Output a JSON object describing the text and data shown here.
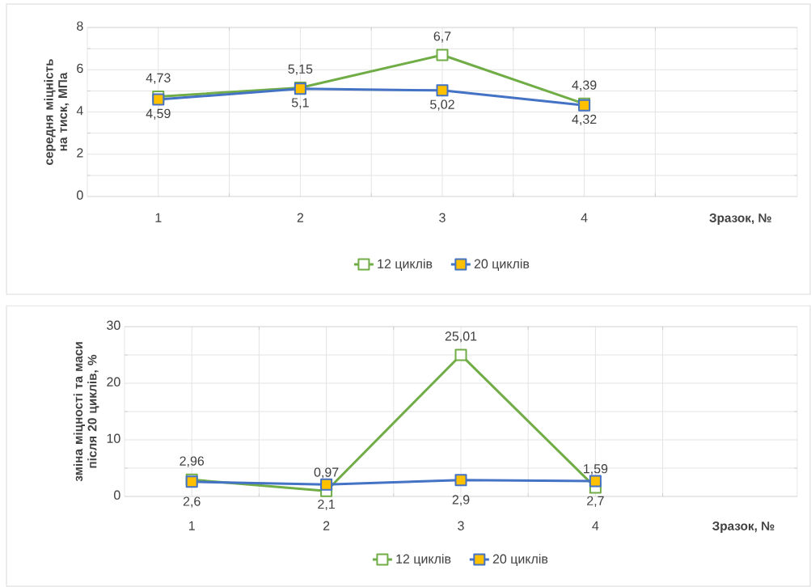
{
  "chart_data": [
    {
      "type": "line",
      "xlabel": "Зразок, №",
      "ylabel": "середня міцність на тиск, МПа",
      "categories": [
        "1",
        "2",
        "3",
        "4"
      ],
      "series": [
        {
          "name": "12 циклів",
          "color": "#70ad47",
          "values": [
            4.73,
            5.15,
            6.7,
            4.39
          ],
          "value_labels": [
            "4,73",
            "5,15",
            "6,7",
            "4,39"
          ]
        },
        {
          "name": "20 циклів",
          "color": "#4472c4",
          "values": [
            4.59,
            5.1,
            5.02,
            4.32
          ],
          "value_labels": [
            "4,59",
            "5,1",
            "5,02",
            "4,32"
          ]
        }
      ],
      "ylim": [
        0,
        8
      ],
      "yticks": [
        0,
        2,
        4,
        6,
        8
      ],
      "grid": true,
      "legend": "bottom",
      "marker": "square"
    },
    {
      "type": "line",
      "xlabel": "Зразок, №",
      "ylabel": "зміна міцності та маси після 20 циклів, %",
      "categories": [
        "1",
        "2",
        "3",
        "4"
      ],
      "series": [
        {
          "name": "12 циклів",
          "color": "#70ad47",
          "values": [
            2.96,
            0.97,
            25.01,
            1.59
          ],
          "value_labels": [
            "2,96",
            "0,97",
            "25,01",
            "1,59"
          ]
        },
        {
          "name": "20 циклів",
          "color": "#4472c4",
          "values": [
            2.6,
            2.1,
            2.9,
            2.7
          ],
          "value_labels": [
            "2,6",
            "2,1",
            "2,9",
            "2,7"
          ]
        }
      ],
      "ylim": [
        0,
        30
      ],
      "yticks": [
        0,
        10,
        20,
        30
      ],
      "grid": true,
      "legend": "bottom",
      "marker": "square"
    }
  ]
}
